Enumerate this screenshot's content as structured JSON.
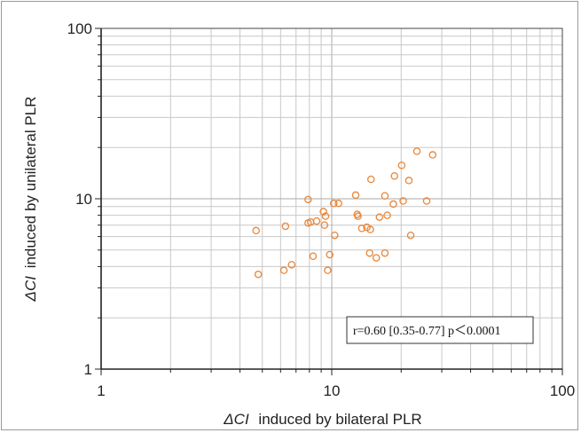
{
  "chart_data": {
    "type": "scatter",
    "x_scale": "log",
    "y_scale": "log",
    "xlim": [
      1,
      100
    ],
    "ylim": [
      1,
      100
    ],
    "grid": true,
    "x_tick_labels": [
      "1",
      "10",
      "100"
    ],
    "y_tick_labels": [
      "1",
      "10",
      "100"
    ],
    "xlabel_symbol": "ΔCI",
    "xlabel_text": "induced by bilateral PLR",
    "ylabel_symbol": "ΔCI",
    "ylabel_text": "induced by unilateral PLR",
    "annotation": "r=0.60  [0.35-0.77]  p＜0.0001",
    "marker_color": "#e8863a",
    "points": [
      {
        "x": 4.7,
        "y": 6.5
      },
      {
        "x": 4.8,
        "y": 3.6
      },
      {
        "x": 6.2,
        "y": 3.8
      },
      {
        "x": 6.3,
        "y": 6.9
      },
      {
        "x": 6.7,
        "y": 4.1
      },
      {
        "x": 7.9,
        "y": 9.9
      },
      {
        "x": 7.9,
        "y": 7.2
      },
      {
        "x": 8.1,
        "y": 7.3
      },
      {
        "x": 8.3,
        "y": 4.6
      },
      {
        "x": 8.6,
        "y": 7.4
      },
      {
        "x": 9.2,
        "y": 8.4
      },
      {
        "x": 9.3,
        "y": 7.0
      },
      {
        "x": 9.4,
        "y": 7.9
      },
      {
        "x": 9.6,
        "y": 3.8
      },
      {
        "x": 9.8,
        "y": 4.7
      },
      {
        "x": 10.2,
        "y": 9.4
      },
      {
        "x": 10.3,
        "y": 6.1
      },
      {
        "x": 10.7,
        "y": 9.4
      },
      {
        "x": 12.7,
        "y": 10.5
      },
      {
        "x": 12.9,
        "y": 8.1
      },
      {
        "x": 13.0,
        "y": 7.9
      },
      {
        "x": 13.5,
        "y": 6.7
      },
      {
        "x": 14.2,
        "y": 6.8
      },
      {
        "x": 14.6,
        "y": 4.8
      },
      {
        "x": 14.7,
        "y": 6.6
      },
      {
        "x": 14.8,
        "y": 13.0
      },
      {
        "x": 15.6,
        "y": 4.5
      },
      {
        "x": 16.1,
        "y": 7.8
      },
      {
        "x": 17.0,
        "y": 10.4
      },
      {
        "x": 17.0,
        "y": 4.8
      },
      {
        "x": 17.4,
        "y": 8.0
      },
      {
        "x": 18.5,
        "y": 9.3
      },
      {
        "x": 18.7,
        "y": 13.6
      },
      {
        "x": 20.1,
        "y": 15.7
      },
      {
        "x": 20.4,
        "y": 9.7
      },
      {
        "x": 21.6,
        "y": 12.8
      },
      {
        "x": 22.0,
        "y": 6.1
      },
      {
        "x": 23.4,
        "y": 19.0
      },
      {
        "x": 25.8,
        "y": 9.7
      },
      {
        "x": 27.4,
        "y": 18.1
      }
    ]
  }
}
